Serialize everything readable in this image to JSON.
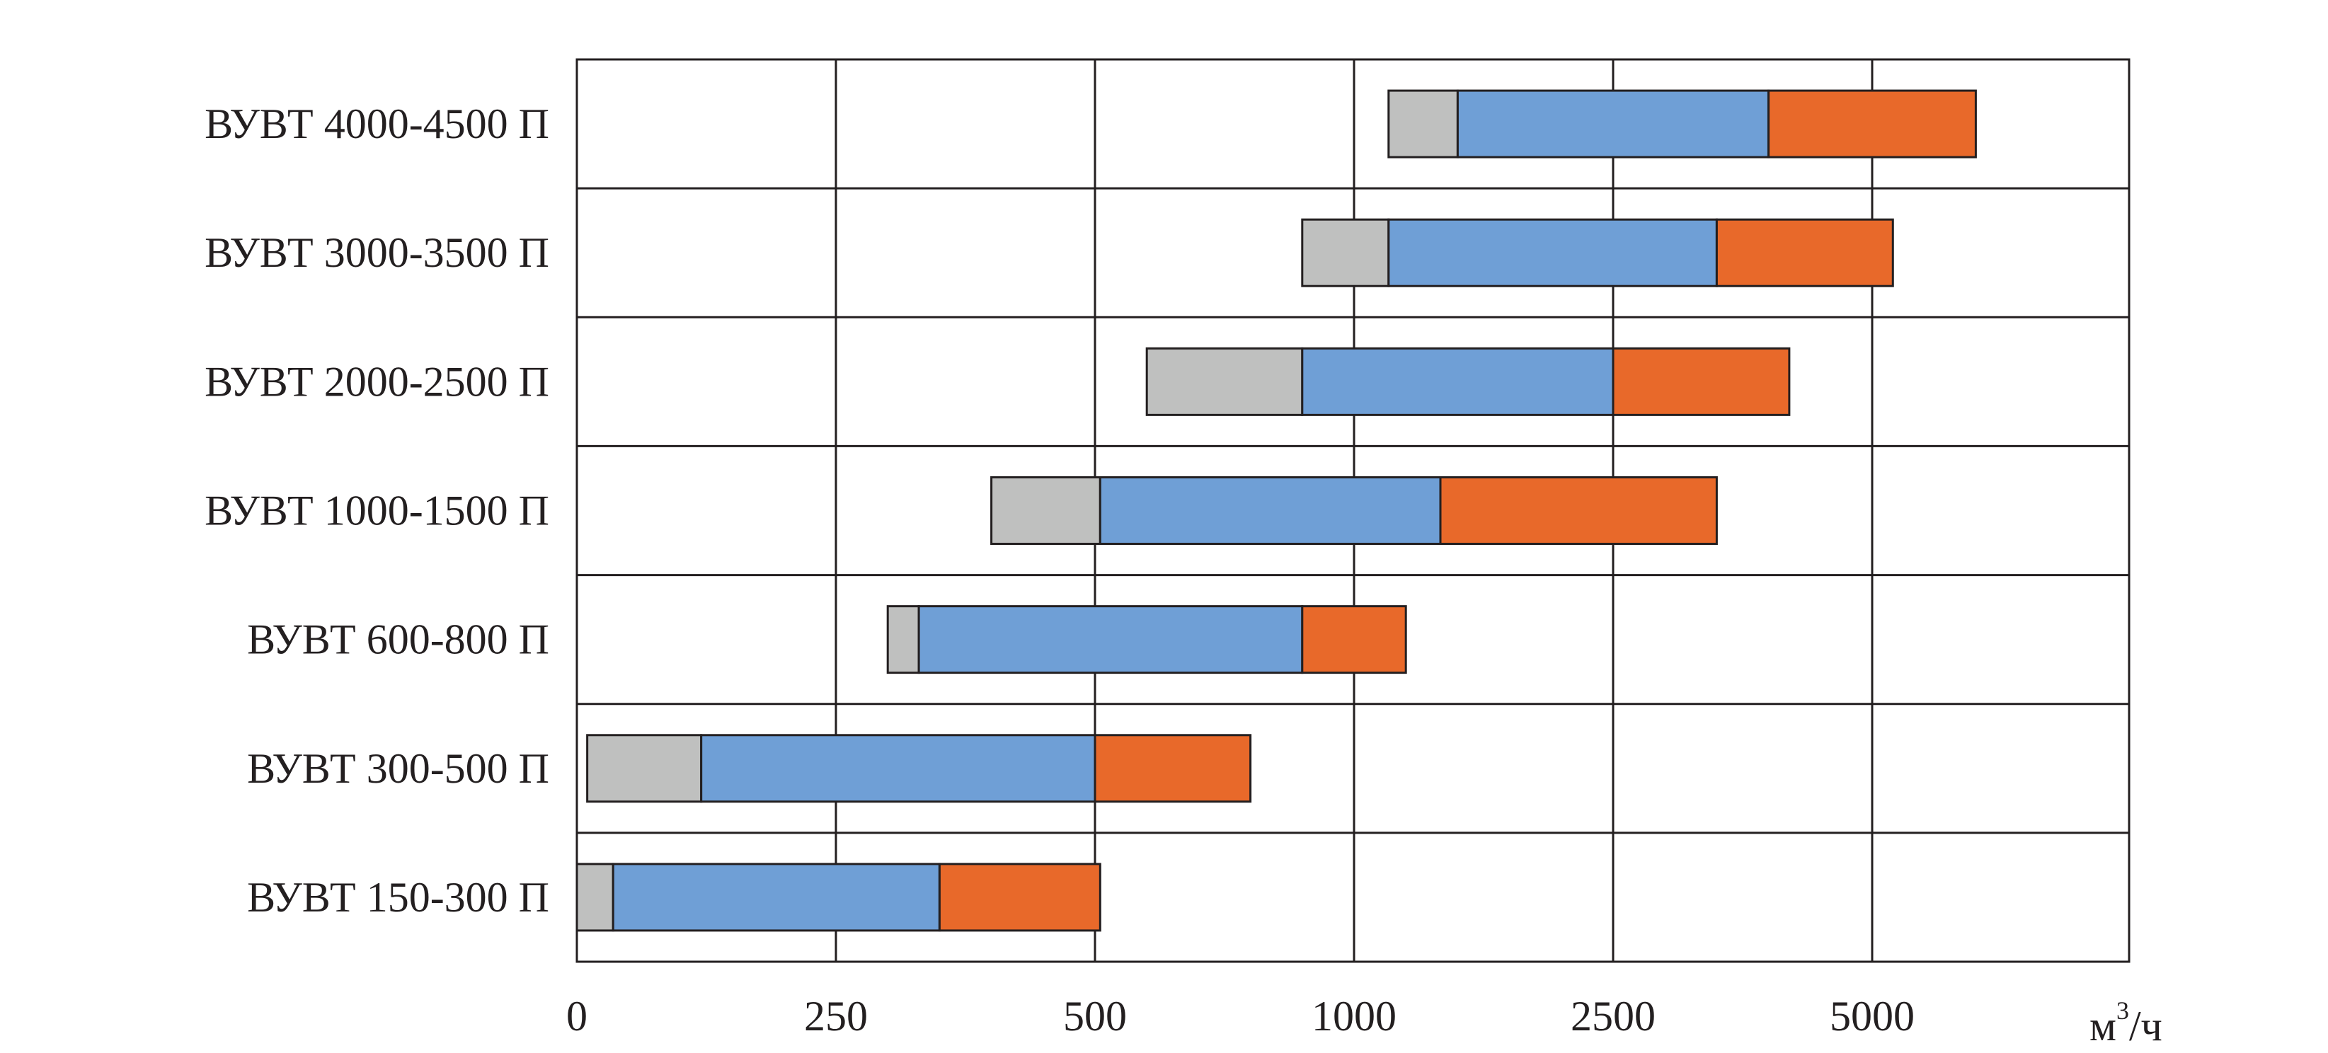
{
  "chart_data": {
    "type": "bar",
    "orientation": "horizontal",
    "stacked": true,
    "x_scale": "categorical-ticks",
    "x_ticks": [
      "0",
      "250",
      "500",
      "1000",
      "2500",
      "5000"
    ],
    "x_unit": "м",
    "x_unit_sup": "3",
    "x_unit_suffix": "/ч",
    "grid": true,
    "categories": [
      "ВУВТ 4000-4500 П",
      "ВУВТ 3000-3500 П",
      "ВУВТ 2000-2500 П",
      "ВУВТ 1000-1500 П",
      "ВУВТ 600-800 П",
      "ВУВТ 300-500 П",
      "ВУВТ 150-300 П"
    ],
    "segments": [
      {
        "color": "#bfc0bf",
        "start": [
          1200,
          900,
          600,
          400,
          300,
          10,
          0
        ],
        "end": [
          1600,
          1200,
          900,
          510,
          330,
          120,
          35
        ]
      },
      {
        "color": "#6f9fd6",
        "start": [
          1600,
          1200,
          900,
          510,
          330,
          120,
          35
        ],
        "end": [
          4000,
          3500,
          2500,
          1500,
          900,
          500,
          350
        ]
      },
      {
        "color": "#e8692a",
        "start": [
          4000,
          3500,
          2500,
          1500,
          900,
          500,
          350
        ],
        "end": [
          6000,
          5200,
          4200,
          3500,
          1300,
          800,
          510
        ]
      }
    ]
  }
}
